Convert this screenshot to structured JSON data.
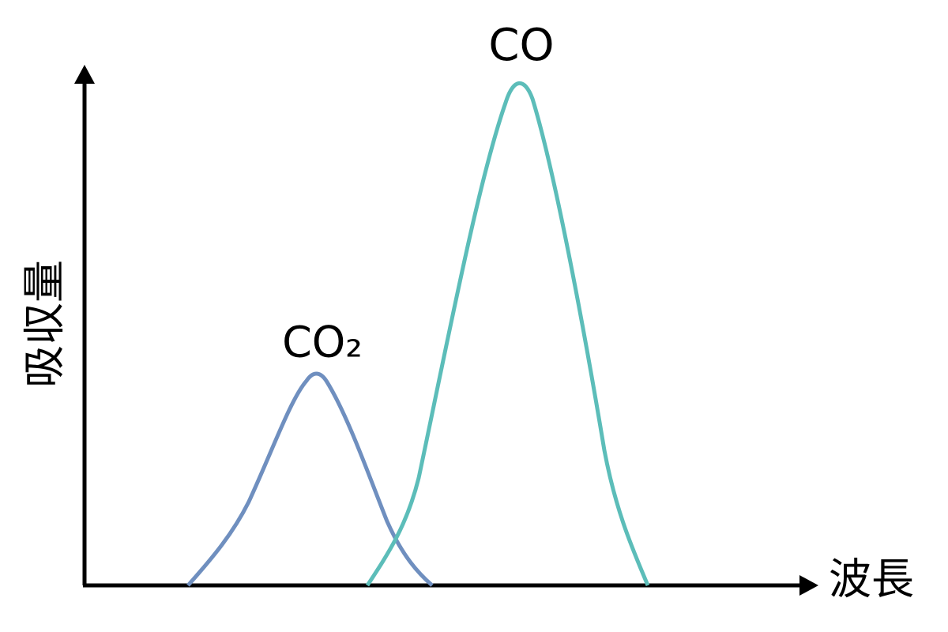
{
  "axes": {
    "x_label": "波長",
    "y_label": "吸収量"
  },
  "curves": [
    {
      "label": "CO₂"
    },
    {
      "label": "CO"
    }
  ]
}
